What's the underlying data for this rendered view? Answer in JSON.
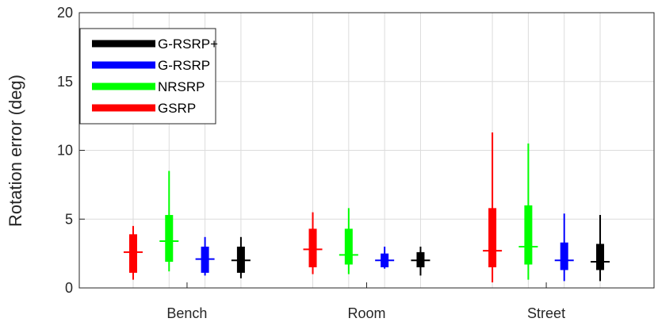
{
  "chart_data": {
    "type": "box",
    "title": "",
    "xlabel": "",
    "ylabel": "Rotation error (deg)",
    "ylim": [
      0,
      20
    ],
    "yticks": [
      0,
      5,
      10,
      15,
      20
    ],
    "grid": true,
    "legend_position": "top-left",
    "categories": [
      "Bench",
      "Room",
      "Street"
    ],
    "legend": [
      "G-RSRP+",
      "G-RSRP",
      "NRSRP",
      "GSRP"
    ],
    "series": [
      {
        "name": "GSRP",
        "color": "#ff0000",
        "boxes": [
          {
            "whisker_low": 0.6,
            "q1": 1.1,
            "median": 2.6,
            "q3": 3.9,
            "whisker_high": 4.5
          },
          {
            "whisker_low": 1.0,
            "q1": 1.5,
            "median": 2.8,
            "q3": 4.3,
            "whisker_high": 5.5
          },
          {
            "whisker_low": 0.4,
            "q1": 1.5,
            "median": 2.7,
            "q3": 5.8,
            "whisker_high": 11.3
          }
        ]
      },
      {
        "name": "NRSRP",
        "color": "#00ff00",
        "boxes": [
          {
            "whisker_low": 1.2,
            "q1": 1.9,
            "median": 3.4,
            "q3": 5.3,
            "whisker_high": 8.5
          },
          {
            "whisker_low": 1.0,
            "q1": 1.7,
            "median": 2.4,
            "q3": 4.3,
            "whisker_high": 5.8
          },
          {
            "whisker_low": 0.6,
            "q1": 1.7,
            "median": 3.0,
            "q3": 6.0,
            "whisker_high": 10.5
          }
        ]
      },
      {
        "name": "G-RSRP",
        "color": "#0000ff",
        "boxes": [
          {
            "whisker_low": 0.9,
            "q1": 1.1,
            "median": 2.1,
            "q3": 3.0,
            "whisker_high": 3.7
          },
          {
            "whisker_low": 1.4,
            "q1": 1.5,
            "median": 2.0,
            "q3": 2.5,
            "whisker_high": 3.0
          },
          {
            "whisker_low": 0.5,
            "q1": 1.3,
            "median": 2.0,
            "q3": 3.3,
            "whisker_high": 5.4
          }
        ]
      },
      {
        "name": "G-RSRP+",
        "color": "#000000",
        "boxes": [
          {
            "whisker_low": 0.7,
            "q1": 1.1,
            "median": 2.0,
            "q3": 3.0,
            "whisker_high": 3.7
          },
          {
            "whisker_low": 0.9,
            "q1": 1.5,
            "median": 2.0,
            "q3": 2.6,
            "whisker_high": 3.0
          },
          {
            "whisker_low": 0.5,
            "q1": 1.3,
            "median": 1.9,
            "q3": 3.2,
            "whisker_high": 5.3
          }
        ]
      }
    ]
  }
}
